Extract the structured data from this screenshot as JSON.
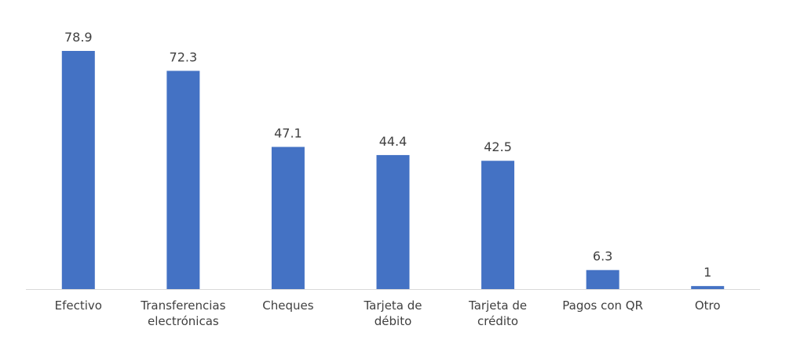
{
  "chart_data": {
    "type": "bar",
    "title": "",
    "xlabel": "",
    "ylabel": "",
    "categories": [
      [
        "Efectivo"
      ],
      [
        "Transferencias",
        "electrónicas"
      ],
      [
        "Cheques"
      ],
      [
        "Tarjeta de",
        "débito"
      ],
      [
        "Tarjeta de",
        "crédito"
      ],
      [
        "Pagos con QR"
      ],
      [
        "Otro"
      ]
    ],
    "values": [
      78.9,
      72.3,
      47.1,
      44.4,
      42.5,
      6.3,
      1
    ],
    "value_labels": [
      "78.9",
      "72.3",
      "47.1",
      "44.4",
      "42.5",
      "6.3",
      "1"
    ],
    "ylim": [
      0,
      78.9
    ],
    "grid": false,
    "legend": "none",
    "colors": {
      "bar": "#4472C4",
      "axis": "#D9D9D9",
      "text": "#404040"
    }
  }
}
